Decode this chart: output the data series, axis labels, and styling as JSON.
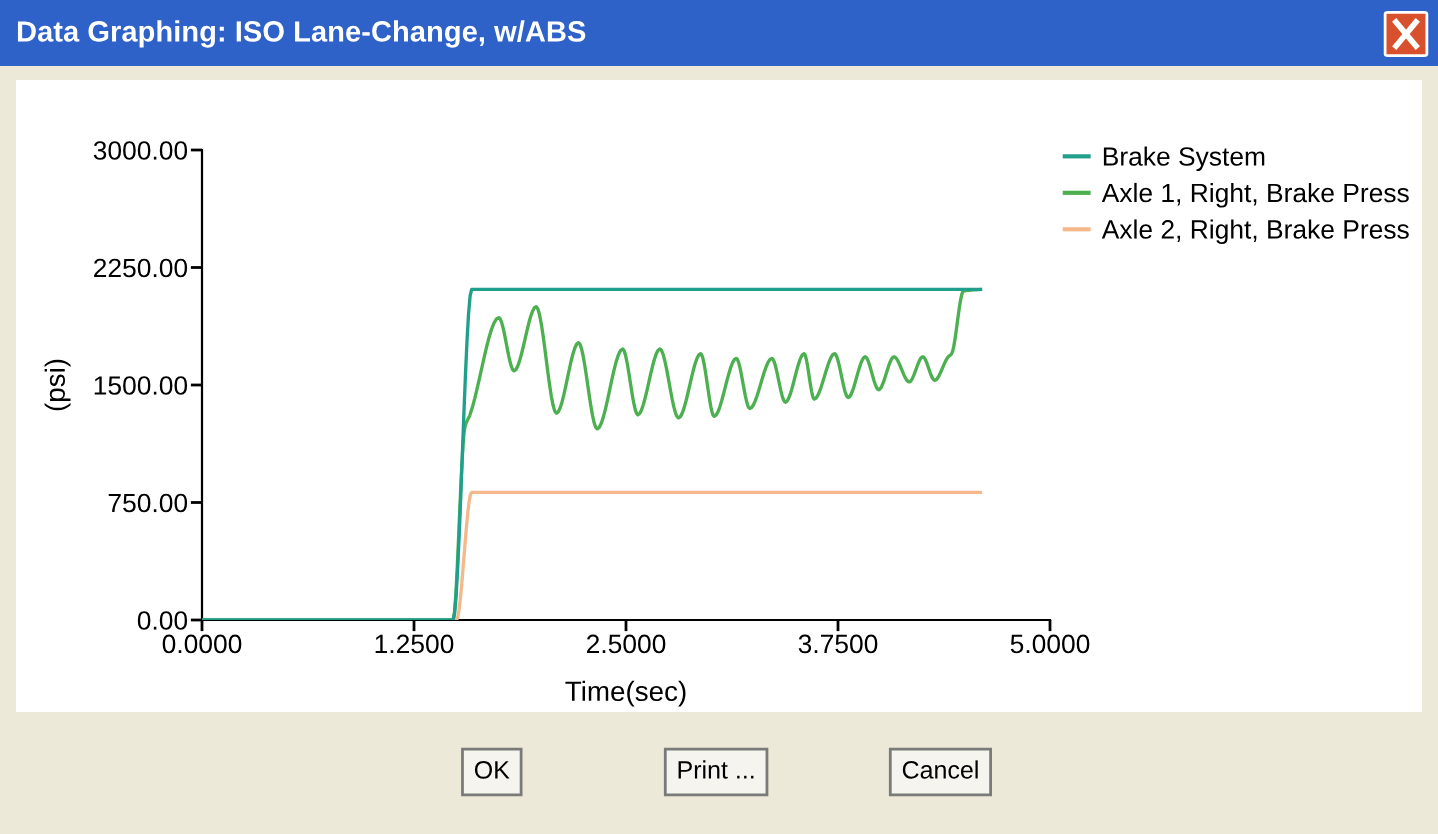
{
  "chart_data": {
    "type": "line",
    "title": "Data Graphing: ISO Lane-Change, w/ABS",
    "xlabel": "Time(sec)",
    "ylabel": "(psi)",
    "xlim": [
      0,
      5
    ],
    "xticks": [
      {
        "value": 0,
        "label": "0.0000"
      },
      {
        "value": 1.25,
        "label": "1.2500"
      },
      {
        "value": 2.5,
        "label": "2.5000"
      },
      {
        "value": 3.75,
        "label": "3.7500"
      },
      {
        "value": 5,
        "label": "5.0000"
      }
    ],
    "ylim": [
      0,
      3000
    ],
    "yticks": [
      {
        "value": 0,
        "label": "0.00"
      },
      {
        "value": 750,
        "label": "750.00"
      },
      {
        "value": 1500,
        "label": "1500.00"
      },
      {
        "value": 2250,
        "label": "2250.00"
      },
      {
        "value": 3000,
        "label": "3000.00"
      }
    ],
    "series": [
      {
        "name": "Brake System",
        "color": "#20a08c",
        "x": [
          0,
          1.48,
          1.59,
          4.59
        ],
        "values": [
          0,
          0,
          2110,
          2110
        ]
      },
      {
        "name": "Axle 1, Right, Brake Press",
        "color": "#4cb050",
        "x": [
          0,
          1.48,
          1.55,
          1.58,
          1.75,
          1.84,
          1.97,
          2.09,
          2.22,
          2.33,
          2.48,
          2.57,
          2.7,
          2.81,
          2.94,
          3.02,
          3.15,
          3.23,
          3.36,
          3.44,
          3.55,
          3.61,
          3.73,
          3.81,
          3.91,
          3.99,
          4.08,
          4.17,
          4.25,
          4.32,
          4.4,
          4.42,
          4.49,
          4.59
        ],
        "values": [
          0,
          0,
          1230,
          1310,
          1930,
          1590,
          2000,
          1320,
          1770,
          1220,
          1730,
          1310,
          1730,
          1290,
          1700,
          1300,
          1670,
          1350,
          1670,
          1390,
          1700,
          1410,
          1700,
          1420,
          1680,
          1470,
          1680,
          1520,
          1680,
          1530,
          1680,
          1700,
          2100,
          2110
        ]
      },
      {
        "name": "Axle 2, Right, Brake Press",
        "color": "#f5b88a",
        "x": [
          0,
          1.5,
          1.59,
          4.59
        ],
        "values": [
          0,
          0,
          815,
          815
        ]
      }
    ],
    "legend": "top right",
    "grid": false,
    "marker": "none",
    "line_style": "solid",
    "annotations": [
      "OK",
      "Print ...",
      "Cancel"
    ]
  }
}
